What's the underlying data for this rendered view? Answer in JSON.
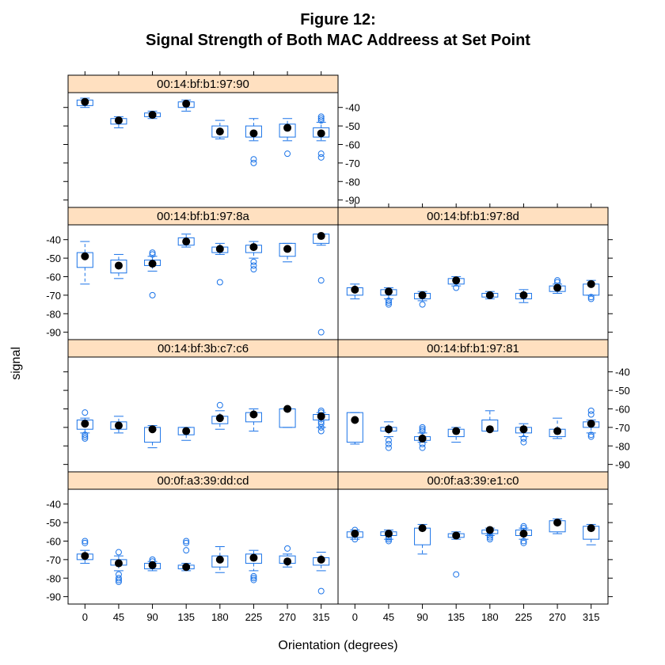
{
  "title_lines": [
    "Figure 12:",
    "Signal Strength of Both MAC Addreess at Set Point"
  ],
  "colors": {
    "strip": "#ffe0c0",
    "box": "#1a73e8",
    "median_dot": "#000000",
    "panel_border": "#000000"
  },
  "chart_data": {
    "type": "box",
    "title": "Figure 12:\nSignal Strength of Both MAC Addreess at Set Point",
    "xlabel": "Orientation (degrees)",
    "ylabel": "signal",
    "x_ticks": [
      "0",
      "45",
      "90",
      "135",
      "180",
      "225",
      "270",
      "315"
    ],
    "y_ticks": [
      "-40",
      "-50",
      "-60",
      "-70",
      "-80",
      "-90"
    ],
    "ylim": [
      -94,
      -32
    ],
    "layout": "2 columns x 4 rows, top-right panel empty",
    "grid": false,
    "panels": [
      {
        "name": "00:14:bf:b1:97:90",
        "stats": [
          {
            "orientation": "0",
            "q1": -39,
            "median": -37,
            "q3": -36,
            "lo": -40,
            "hi": -35,
            "outliers": []
          },
          {
            "orientation": "45",
            "q1": -49,
            "median": -47,
            "q3": -46,
            "lo": -51,
            "hi": -45,
            "outliers": []
          },
          {
            "orientation": "90",
            "q1": -45,
            "median": -44,
            "q3": -43,
            "lo": -46,
            "hi": -42,
            "outliers": []
          },
          {
            "orientation": "135",
            "q1": -40,
            "median": -38,
            "q3": -37,
            "lo": -42,
            "hi": -36,
            "outliers": []
          },
          {
            "orientation": "180",
            "q1": -56,
            "median": -53,
            "q3": -50,
            "lo": -57,
            "hi": -47,
            "outliers": []
          },
          {
            "orientation": "225",
            "q1": -56,
            "median": -54,
            "q3": -50,
            "lo": -58,
            "hi": -46,
            "outliers": [
              -68,
              -70
            ]
          },
          {
            "orientation": "270",
            "q1": -56,
            "median": -51,
            "q3": -49,
            "lo": -58,
            "hi": -46,
            "outliers": [
              -65
            ]
          },
          {
            "orientation": "315",
            "q1": -56,
            "median": -54,
            "q3": -51,
            "lo": -58,
            "hi": -48,
            "outliers": [
              -45,
              -46,
              -47,
              -65,
              -67
            ]
          }
        ]
      },
      {
        "name": "00:14:bf:b1:97:8a",
        "stats": [
          {
            "orientation": "0",
            "q1": -55,
            "median": -49,
            "q3": -47,
            "lo": -64,
            "hi": -41,
            "outliers": []
          },
          {
            "orientation": "45",
            "q1": -58,
            "median": -54,
            "q3": -51,
            "lo": -61,
            "hi": -48,
            "outliers": []
          },
          {
            "orientation": "90",
            "q1": -54,
            "median": -53,
            "q3": -51,
            "lo": -57,
            "hi": -49,
            "outliers": [
              -47,
              -48,
              -70
            ]
          },
          {
            "orientation": "135",
            "q1": -43,
            "median": -41,
            "q3": -39,
            "lo": -44,
            "hi": -37,
            "outliers": []
          },
          {
            "orientation": "180",
            "q1": -47,
            "median": -45,
            "q3": -44,
            "lo": -48,
            "hi": -42,
            "outliers": [
              -63
            ]
          },
          {
            "orientation": "225",
            "q1": -47,
            "median": -44,
            "q3": -43,
            "lo": -50,
            "hi": -41,
            "outliers": [
              -52,
              -54,
              -56
            ]
          },
          {
            "orientation": "270",
            "q1": -49,
            "median": -45,
            "q3": -42,
            "lo": -52,
            "hi": -42,
            "outliers": []
          },
          {
            "orientation": "315",
            "q1": -42,
            "median": -38,
            "q3": -37,
            "lo": -43,
            "hi": -37,
            "outliers": [
              -62,
              -90
            ]
          }
        ]
      },
      {
        "name": "00:14:bf:b1:97:8d",
        "stats": [
          {
            "orientation": "0",
            "q1": -70,
            "median": -67,
            "q3": -66,
            "lo": -72,
            "hi": -64,
            "outliers": []
          },
          {
            "orientation": "45",
            "q1": -70,
            "median": -68,
            "q3": -67,
            "lo": -72,
            "hi": -66,
            "outliers": [
              -73,
              -74,
              -75
            ]
          },
          {
            "orientation": "90",
            "q1": -72,
            "median": -70,
            "q3": -69,
            "lo": -73,
            "hi": -68,
            "outliers": [
              -75
            ]
          },
          {
            "orientation": "135",
            "q1": -64,
            "median": -62,
            "q3": -61,
            "lo": -65,
            "hi": -60,
            "outliers": [
              -66
            ]
          },
          {
            "orientation": "180",
            "q1": -71,
            "median": -70,
            "q3": -69,
            "lo": -72,
            "hi": -68,
            "outliers": []
          },
          {
            "orientation": "225",
            "q1": -72,
            "median": -70,
            "q3": -69,
            "lo": -74,
            "hi": -67,
            "outliers": []
          },
          {
            "orientation": "270",
            "q1": -68,
            "median": -66,
            "q3": -65,
            "lo": -69,
            "hi": -64,
            "outliers": [
              -62,
              -63
            ]
          },
          {
            "orientation": "315",
            "q1": -70,
            "median": -64,
            "q3": -64,
            "lo": -70,
            "hi": -62,
            "outliers": [
              -71,
              -72
            ]
          }
        ]
      },
      {
        "name": "00:14:bf:3b:c7:c6",
        "stats": [
          {
            "orientation": "0",
            "q1": -71,
            "median": -68,
            "q3": -66,
            "lo": -73,
            "hi": -65,
            "outliers": [
              -62,
              -74,
              -75,
              -76
            ]
          },
          {
            "orientation": "45",
            "q1": -71,
            "median": -69,
            "q3": -67,
            "lo": -73,
            "hi": -64,
            "outliers": []
          },
          {
            "orientation": "90",
            "q1": -78,
            "median": -71,
            "q3": -70,
            "lo": -81,
            "hi": -69,
            "outliers": []
          },
          {
            "orientation": "135",
            "q1": -74,
            "median": -72,
            "q3": -70,
            "lo": -77,
            "hi": -70,
            "outliers": []
          },
          {
            "orientation": "180",
            "q1": -68,
            "median": -65,
            "q3": -64,
            "lo": -71,
            "hi": -61,
            "outliers": [
              -58
            ]
          },
          {
            "orientation": "225",
            "q1": -67,
            "median": -63,
            "q3": -62,
            "lo": -72,
            "hi": -60,
            "outliers": []
          },
          {
            "orientation": "270",
            "q1": -70,
            "median": -60,
            "q3": -60,
            "lo": -70,
            "hi": -60,
            "outliers": []
          },
          {
            "orientation": "315",
            "q1": -66,
            "median": -64,
            "q3": -63,
            "lo": -70,
            "hi": -62,
            "outliers": [
              -61,
              -62,
              -67,
              -68,
              -70,
              -72
            ]
          }
        ]
      },
      {
        "name": "00:14:bf:b1:97:81",
        "stats": [
          {
            "orientation": "0",
            "q1": -78,
            "median": -66,
            "q3": -62,
            "lo": -79,
            "hi": -62,
            "outliers": []
          },
          {
            "orientation": "45",
            "q1": -72,
            "median": -71,
            "q3": -70,
            "lo": -75,
            "hi": -67,
            "outliers": [
              -77,
              -79,
              -81
            ]
          },
          {
            "orientation": "90",
            "q1": -77,
            "median": -76,
            "q3": -75,
            "lo": -78,
            "hi": -73,
            "outliers": [
              -70,
              -71,
              -72,
              -79,
              -81
            ]
          },
          {
            "orientation": "135",
            "q1": -75,
            "median": -72,
            "q3": -71,
            "lo": -78,
            "hi": -70,
            "outliers": []
          },
          {
            "orientation": "180",
            "q1": -72,
            "median": -71,
            "q3": -66,
            "lo": -72,
            "hi": -61,
            "outliers": []
          },
          {
            "orientation": "225",
            "q1": -73,
            "median": -71,
            "q3": -70,
            "lo": -75,
            "hi": -68,
            "outliers": [
              -76,
              -78
            ]
          },
          {
            "orientation": "270",
            "q1": -75,
            "median": -72,
            "q3": -71,
            "lo": -76,
            "hi": -65,
            "outliers": []
          },
          {
            "orientation": "315",
            "q1": -70,
            "median": -68,
            "q3": -67,
            "lo": -73,
            "hi": -66,
            "outliers": [
              -61,
              -63,
              -74,
              -75
            ]
          }
        ]
      },
      {
        "name": "00:0f:a3:39:dd:cd",
        "stats": [
          {
            "orientation": "0",
            "q1": -70,
            "median": -68,
            "q3": -67,
            "lo": -72,
            "hi": -65,
            "outliers": [
              -60,
              -61
            ]
          },
          {
            "orientation": "45",
            "q1": -73,
            "median": -72,
            "q3": -70,
            "lo": -76,
            "hi": -68,
            "outliers": [
              -66,
              -78,
              -80,
              -81,
              -82
            ]
          },
          {
            "orientation": "90",
            "q1": -75,
            "median": -73,
            "q3": -72,
            "lo": -76,
            "hi": -71,
            "outliers": [
              -70,
              -71
            ]
          },
          {
            "orientation": "135",
            "q1": -75,
            "median": -74,
            "q3": -73,
            "lo": -76,
            "hi": -72,
            "outliers": [
              -60,
              -61,
              -65
            ]
          },
          {
            "orientation": "180",
            "q1": -74,
            "median": -70,
            "q3": -68,
            "lo": -77,
            "hi": -63,
            "outliers": []
          },
          {
            "orientation": "225",
            "q1": -72,
            "median": -69,
            "q3": -67,
            "lo": -76,
            "hi": -65,
            "outliers": [
              -79,
              -80,
              -81
            ]
          },
          {
            "orientation": "270",
            "q1": -72,
            "median": -71,
            "q3": -68,
            "lo": -74,
            "hi": -67,
            "outliers": [
              -64
            ]
          },
          {
            "orientation": "315",
            "q1": -73,
            "median": -70,
            "q3": -69,
            "lo": -76,
            "hi": -66,
            "outliers": [
              -87
            ]
          }
        ]
      },
      {
        "name": "00:0f:a3:39:e1:c0",
        "stats": [
          {
            "orientation": "0",
            "q1": -58,
            "median": -56,
            "q3": -55,
            "lo": -59,
            "hi": -54,
            "outliers": [
              -54,
              -59
            ]
          },
          {
            "orientation": "45",
            "q1": -57,
            "median": -56,
            "q3": -55,
            "lo": -59,
            "hi": -54,
            "outliers": [
              -58,
              -59,
              -60
            ]
          },
          {
            "orientation": "90",
            "q1": -62,
            "median": -53,
            "q3": -53,
            "lo": -67,
            "hi": -51,
            "outliers": []
          },
          {
            "orientation": "135",
            "q1": -58,
            "median": -57,
            "q3": -56,
            "lo": -59,
            "hi": -55,
            "outliers": [
              -78
            ]
          },
          {
            "orientation": "180",
            "q1": -56,
            "median": -54,
            "q3": -54,
            "lo": -57,
            "hi": -53,
            "outliers": [
              -55,
              -57,
              -58,
              -59
            ]
          },
          {
            "orientation": "225",
            "q1": -57,
            "median": -56,
            "q3": -54,
            "lo": -59,
            "hi": -53,
            "outliers": [
              -52,
              -53,
              -60,
              -61
            ]
          },
          {
            "orientation": "270",
            "q1": -55,
            "median": -50,
            "q3": -49,
            "lo": -56,
            "hi": -48,
            "outliers": []
          },
          {
            "orientation": "315",
            "q1": -59,
            "median": -53,
            "q3": -52,
            "lo": -62,
            "hi": -51,
            "outliers": []
          }
        ]
      }
    ]
  }
}
